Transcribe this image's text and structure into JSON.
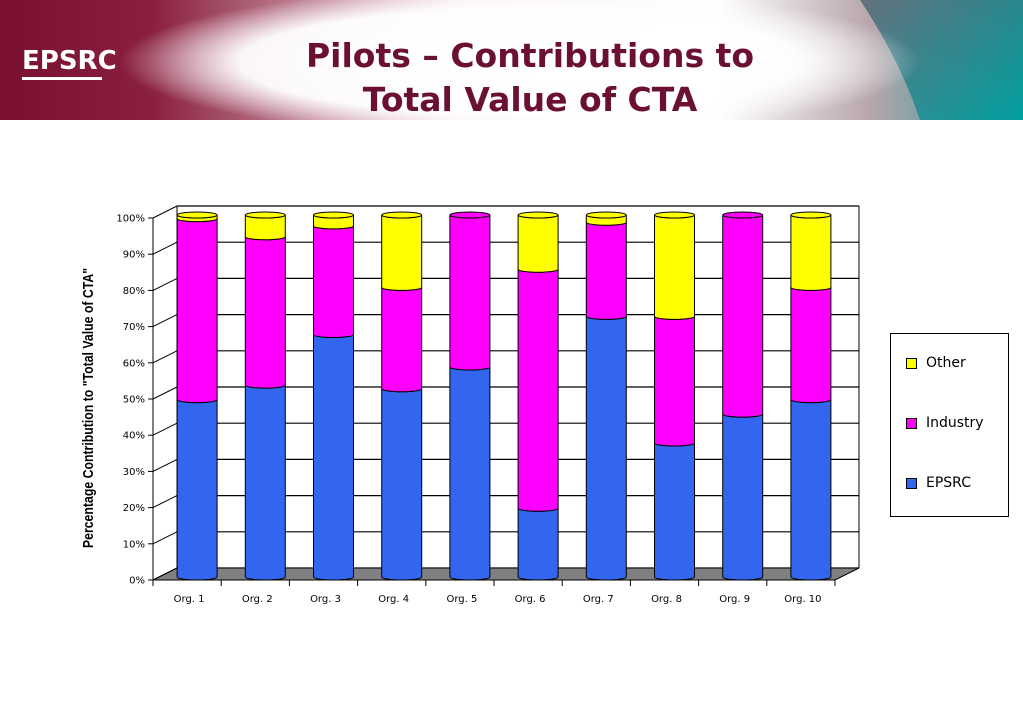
{
  "header": {
    "logo_text": "EPSRC",
    "title_line1": "Pilots – Contributions to",
    "title_line2": "Total Value of CTA"
  },
  "colors": {
    "banner_dark": "#7a1030",
    "banner_teal": "#009999",
    "title": "#6b0f33",
    "epsrc": "#3366ee",
    "industry": "#ff00ff",
    "other": "#ffff00",
    "floor": "#808080"
  },
  "chart_data": {
    "type": "bar",
    "stacked": true,
    "ylabel": "Percentage Contribution to \"Total Value of CTA\"",
    "ylim": [
      0,
      100
    ],
    "yticks": [
      "0%",
      "10%",
      "20%",
      "30%",
      "40%",
      "50%",
      "60%",
      "70%",
      "80%",
      "90%",
      "100%"
    ],
    "categories": [
      "Org. 1",
      "Org. 2",
      "Org. 3",
      "Org. 4",
      "Org. 5",
      "Org. 6",
      "Org. 7",
      "Org. 8",
      "Org. 9",
      "Org. 10"
    ],
    "series": [
      {
        "name": "EPSRC",
        "color": "#3366ee",
        "values": [
          49,
          53,
          67,
          52,
          58,
          19,
          72,
          37,
          45,
          49
        ]
      },
      {
        "name": "Industry",
        "color": "#ff00ff",
        "values": [
          50,
          41,
          30,
          28,
          42,
          66,
          26,
          35,
          55,
          31
        ]
      },
      {
        "name": "Other",
        "color": "#ffff00",
        "values": [
          1,
          6,
          3,
          20,
          0,
          15,
          2,
          28,
          0,
          20
        ]
      }
    ],
    "legend_order": [
      "Other",
      "Industry",
      "EPSRC"
    ],
    "legend_position": "right",
    "grid": true
  }
}
